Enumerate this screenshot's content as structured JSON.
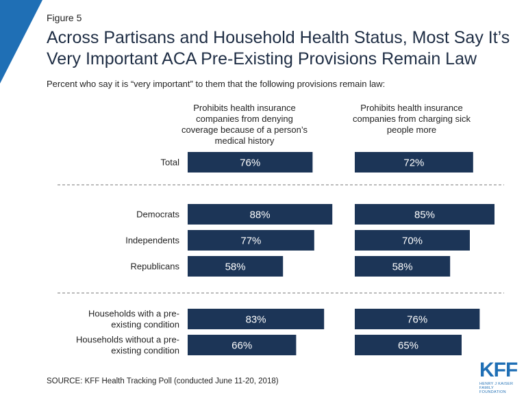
{
  "figure_label": "Figure 5",
  "title": "Across Partisans and Household Health Status, Most Say It’s Very Important ACA Pre-Existing Provisions Remain Law",
  "subtitle": "Percent who say it is “very important” to them that the following provisions remain law:",
  "source": "SOURCE: KFF Health Tracking Poll (conducted June 11-20, 2018)",
  "logo": {
    "mark": "KFF",
    "small_text": "HENRY J KAISER FAMILY FOUNDATION"
  },
  "colors": {
    "bar": "#1c3557",
    "bar_text": "#ffffff",
    "corner": "#1f6fb5",
    "divider": "#777777"
  },
  "chart_data": {
    "type": "bar",
    "orientation": "horizontal",
    "categories": [
      "Total",
      "Democrats",
      "Independents",
      "Republicans",
      "Households with a pre-existing condition",
      "Households without a pre-existing condition"
    ],
    "category_lines": [
      [
        "Total"
      ],
      [
        "Democrats"
      ],
      [
        "Independents"
      ],
      [
        "Republicans"
      ],
      [
        "Households with a pre-",
        "existing condition"
      ],
      [
        "Households without a pre-",
        "existing condition"
      ]
    ],
    "series": [
      {
        "name": "Prohibits health insurance companies from denying coverage because of a person’s medical history",
        "values": [
          76,
          88,
          77,
          58,
          83,
          66
        ]
      },
      {
        "name": "Prohibits health insurance companies from charging sick people more",
        "values": [
          72,
          85,
          70,
          58,
          76,
          65
        ]
      }
    ],
    "value_labels": [
      [
        "76%",
        "88%",
        "77%",
        "58%",
        "83%",
        "66%"
      ],
      [
        "72%",
        "85%",
        "70%",
        "58%",
        "76%",
        "65%"
      ]
    ],
    "groups": [
      [
        0
      ],
      [
        1,
        2,
        3
      ],
      [
        4,
        5
      ]
    ],
    "xlim": [
      0,
      100
    ],
    "legend": "column headers above each panel"
  }
}
